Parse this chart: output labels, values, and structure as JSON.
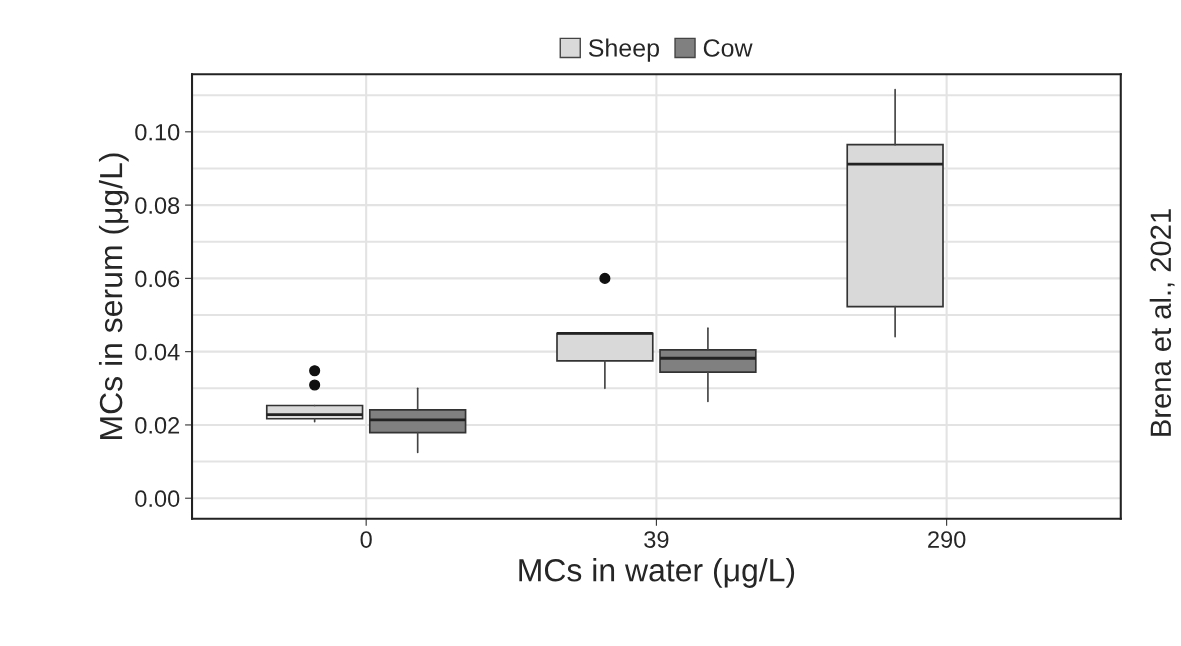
{
  "chart_data": {
    "type": "box",
    "categories": [
      "0",
      "39",
      "290"
    ],
    "series": [
      {
        "name": "Sheep",
        "color": "#d9d9d9",
        "boxes": [
          {
            "low": 0.0209,
            "q1": 0.0217,
            "median": 0.0228,
            "q3": 0.0253,
            "high": 0.0253,
            "outliers": [
              0.0348,
              0.0309
            ]
          },
          {
            "low": 0.03,
            "q1": 0.0375,
            "median": 0.045,
            "q3": 0.045,
            "high": 0.045,
            "outliers": [
              0.06
            ]
          },
          {
            "low": 0.0441,
            "q1": 0.0523,
            "median": 0.0912,
            "q3": 0.0965,
            "high": 0.1115
          }
        ]
      },
      {
        "name": "Cow",
        "color": "#808080",
        "boxes": [
          {
            "low": 0.0125,
            "q1": 0.0179,
            "median": 0.0214,
            "q3": 0.0241,
            "high": 0.03
          },
          {
            "low": 0.0264,
            "q1": 0.0344,
            "median": 0.0382,
            "q3": 0.0405,
            "high": 0.0464
          },
          null
        ]
      }
    ],
    "xlabel": "MCs in water (μg/L)",
    "ylabel": "MCs in serum (μg/L)",
    "ylim": [
      -0.0056,
      0.1157
    ],
    "yticks": [
      {
        "value": 0,
        "label": "0.00"
      },
      {
        "value": 0.02,
        "label": "0.02"
      },
      {
        "value": 0.04,
        "label": "0.04"
      },
      {
        "value": 0.06,
        "label": "0.06"
      },
      {
        "value": 0.08,
        "label": "0.08"
      },
      {
        "value": 0.1,
        "label": "0.10"
      }
    ],
    "grid": true,
    "legend": "top",
    "annotations": [
      "Brena et al., 2021"
    ]
  }
}
